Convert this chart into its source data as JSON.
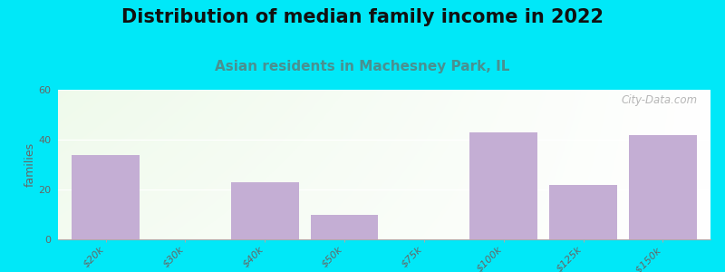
{
  "title": "Distribution of median family income in 2022",
  "subtitle": "Asian residents in Machesney Park, IL",
  "categories": [
    "$20k",
    "$30k",
    "$40k",
    "$50k",
    "$75k",
    "$100k",
    "$125k",
    ">$150k"
  ],
  "values": [
    34,
    0,
    23,
    10,
    0,
    43,
    22,
    42
  ],
  "bar_color": "#c4aed4",
  "background_outer": "#00e8f8",
  "plot_bg_left": "#e8f5e0",
  "plot_bg_right": "#f8fcf8",
  "ylabel": "families",
  "ylim": [
    0,
    60
  ],
  "yticks": [
    0,
    20,
    40,
    60
  ],
  "title_fontsize": 15,
  "subtitle_fontsize": 11,
  "subtitle_color": "#4a9090",
  "watermark": "City-Data.com",
  "tick_color": "#666666",
  "tick_fontsize": 8
}
